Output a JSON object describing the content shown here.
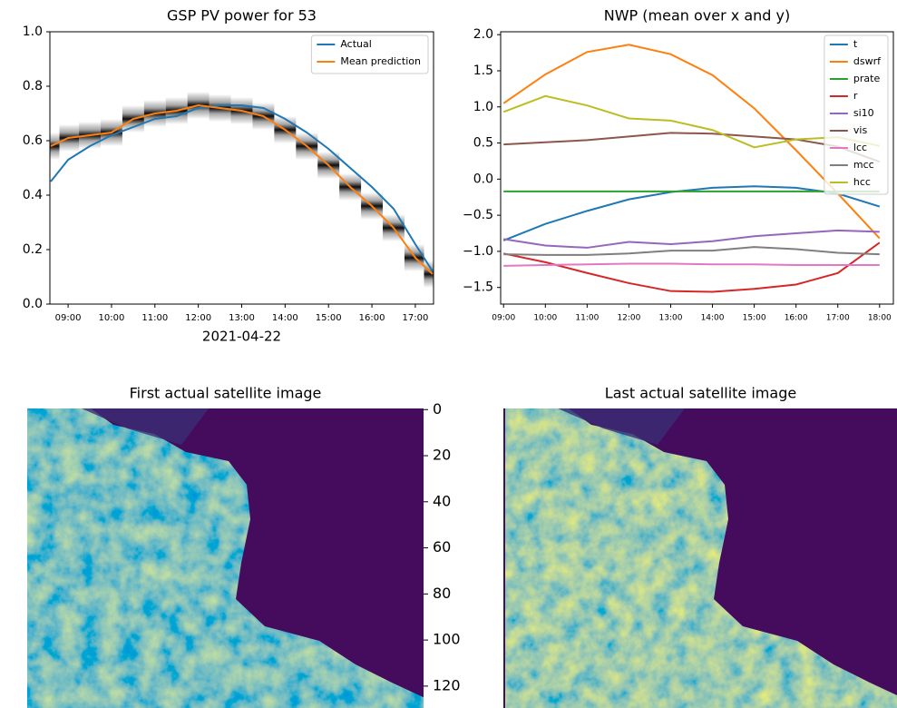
{
  "chart_data": [
    {
      "type": "line",
      "title": "GSP PV power for 53",
      "x_label": "2021-04-22",
      "x": [
        8.6,
        9.0,
        9.5,
        10.0,
        10.5,
        11.0,
        11.5,
        12.0,
        12.5,
        13.0,
        13.5,
        14.0,
        14.5,
        15.0,
        15.5,
        16.0,
        16.5,
        17.0,
        17.4
      ],
      "series": [
        {
          "name": "Actual",
          "color": "#1f77b4",
          "values": [
            0.45,
            0.53,
            0.58,
            0.62,
            0.65,
            0.68,
            0.69,
            0.72,
            0.73,
            0.73,
            0.72,
            0.68,
            0.63,
            0.57,
            0.5,
            0.43,
            0.35,
            0.22,
            0.12
          ]
        },
        {
          "name": "Mean prediction",
          "color": "#ff7f0e",
          "band": true,
          "values": [
            0.58,
            0.61,
            0.62,
            0.63,
            0.68,
            0.7,
            0.71,
            0.73,
            0.72,
            0.71,
            0.69,
            0.64,
            0.58,
            0.51,
            0.43,
            0.36,
            0.28,
            0.17,
            0.11
          ]
        }
      ],
      "xlim": [
        8.58,
        17.42
      ],
      "ylim": [
        0,
        1
      ],
      "xticks": [
        {
          "value": 9,
          "label": "09:00"
        },
        {
          "value": 10,
          "label": "10:00"
        },
        {
          "value": 11,
          "label": "11:00"
        },
        {
          "value": 12,
          "label": "12:00"
        },
        {
          "value": 13,
          "label": "13:00"
        },
        {
          "value": 14,
          "label": "14:00"
        },
        {
          "value": 15,
          "label": "15:00"
        },
        {
          "value": 16,
          "label": "16:00"
        },
        {
          "value": 17,
          "label": "17:00"
        }
      ],
      "yticks": [
        {
          "value": 0,
          "label": "0.0"
        },
        0.2,
        0.4,
        0.6,
        0.8,
        {
          "value": 1,
          "label": "1.0"
        }
      ],
      "legend": "upper right"
    },
    {
      "type": "line",
      "title": "NWP (mean over x and y)",
      "x": [
        9,
        10,
        11,
        12,
        13,
        14,
        15,
        16,
        17,
        18
      ],
      "series": [
        {
          "name": "t",
          "color": "#1f77b4",
          "values": [
            -0.85,
            -0.62,
            -0.44,
            -0.28,
            -0.18,
            -0.12,
            -0.1,
            -0.12,
            -0.2,
            -0.38
          ]
        },
        {
          "name": "dswrf",
          "color": "#ff7f0e",
          "values": [
            1.05,
            1.45,
            1.76,
            1.86,
            1.73,
            1.44,
            0.98,
            0.4,
            -0.2,
            -0.82
          ]
        },
        {
          "name": "prate",
          "color": "#2ca02c",
          "values": [
            -0.17,
            -0.17,
            -0.17,
            -0.17,
            -0.17,
            -0.17,
            -0.17,
            -0.17,
            -0.17,
            -0.17
          ]
        },
        {
          "name": "r",
          "color": "#d62728",
          "values": [
            -1.03,
            -1.15,
            -1.3,
            -1.44,
            -1.55,
            -1.56,
            -1.52,
            -1.46,
            -1.3,
            -0.88
          ]
        },
        {
          "name": "si10",
          "color": "#9467bd",
          "values": [
            -0.83,
            -0.92,
            -0.95,
            -0.87,
            -0.9,
            -0.86,
            -0.79,
            -0.75,
            -0.71,
            -0.73
          ]
        },
        {
          "name": "vis",
          "color": "#8c564b",
          "values": [
            0.48,
            0.51,
            0.54,
            0.59,
            0.64,
            0.63,
            0.59,
            0.55,
            0.45,
            0.24
          ]
        },
        {
          "name": "lcc",
          "color": "#e377c2",
          "values": [
            -1.2,
            -1.19,
            -1.18,
            -1.17,
            -1.17,
            -1.18,
            -1.18,
            -1.19,
            -1.19,
            -1.19
          ]
        },
        {
          "name": "mcc",
          "color": "#7f7f7f",
          "values": [
            -1.04,
            -1.05,
            -1.05,
            -1.03,
            -0.99,
            -0.99,
            -0.94,
            -0.97,
            -1.02,
            -1.04
          ]
        },
        {
          "name": "hcc",
          "color": "#bcbd22",
          "values": [
            0.93,
            1.15,
            1.02,
            0.84,
            0.81,
            0.68,
            0.44,
            0.55,
            0.58,
            0.46
          ]
        }
      ],
      "xlim": [
        8.93,
        18.33
      ],
      "ylim": [
        -1.73,
        2.04
      ],
      "xticks": [
        {
          "value": 9,
          "label": "09:00"
        },
        {
          "value": 10,
          "label": "10:00"
        },
        {
          "value": 11,
          "label": "11:00"
        },
        {
          "value": 12,
          "label": "12:00"
        },
        {
          "value": 13,
          "label": "13:00"
        },
        {
          "value": 14,
          "label": "14:00"
        },
        {
          "value": 15,
          "label": "15:00"
        },
        {
          "value": 16,
          "label": "16:00"
        },
        {
          "value": 17,
          "label": "17:00"
        },
        {
          "value": 18,
          "label": "18:00"
        }
      ],
      "yticks": [
        {
          "value": 2,
          "label": "2.0"
        },
        1.5,
        {
          "value": 1,
          "label": "1.0"
        },
        0.5,
        {
          "value": 0,
          "label": "0.0"
        },
        {
          "value": -0.5,
          "label": "−0.5"
        },
        {
          "value": -1,
          "label": "−1.0"
        },
        {
          "value": -1.5,
          "label": "−1.5"
        }
      ],
      "legend": "upper right"
    },
    {
      "type": "image",
      "title": "First actual satellite image",
      "ylim": [
        -0.5,
        129.5
      ],
      "yticks": [
        0,
        20,
        40,
        60,
        80,
        100,
        120
      ]
    },
    {
      "type": "image",
      "title": "Last actual satellite image"
    }
  ]
}
